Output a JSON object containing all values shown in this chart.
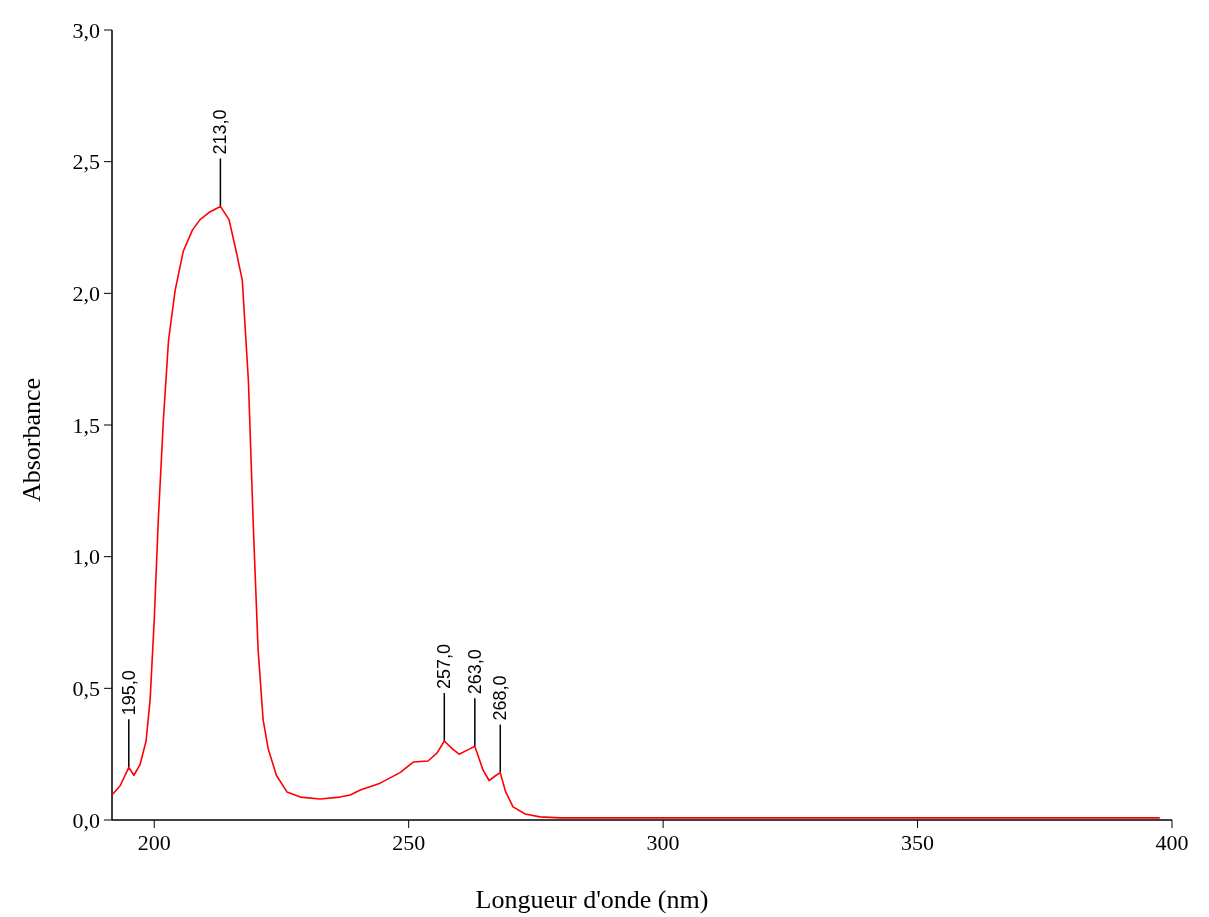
{
  "chart_data": {
    "type": "line",
    "xlabel": "Longueur d'onde (nm)",
    "ylabel": "Absorbance",
    "xlim": [
      191.7,
      400
    ],
    "xticks": [
      200,
      250,
      300,
      350,
      400
    ],
    "ylim": [
      0,
      3
    ],
    "yticks": [
      {
        "value": 0,
        "label": "0,0"
      },
      {
        "value": 0.5,
        "label": "0,5"
      },
      {
        "value": 1,
        "label": "1,0"
      },
      {
        "value": 1.5,
        "label": "1,5"
      },
      {
        "value": 2,
        "label": "2,0"
      },
      {
        "value": 2.5,
        "label": "2,5"
      },
      {
        "value": 3,
        "label": "3,0"
      }
    ],
    "grid": false,
    "series": [
      {
        "color": "#ff0000",
        "x": [
          191.7,
          193.3,
          195,
          196,
          197.2,
          198.4,
          199.2,
          200,
          200.8,
          201.8,
          202.8,
          204.1,
          205.7,
          207.5,
          209,
          211,
          213,
          214.7,
          216.1,
          217.3,
          218.5,
          219.5,
          220.4,
          221.4,
          222.4,
          224,
          226.1,
          228.7,
          232.6,
          236.5,
          238.5,
          240.5,
          244.4,
          248.3,
          250.9,
          253.8,
          255.6,
          257,
          258.6,
          259.9,
          262,
          263,
          264.6,
          265.8,
          267.2,
          268,
          269,
          270.5,
          272.9,
          275.8,
          279.8,
          397.6
        ],
        "values": [
          0.095,
          0.13,
          0.2,
          0.17,
          0.21,
          0.3,
          0.46,
          0.76,
          1.14,
          1.52,
          1.82,
          2.01,
          2.16,
          2.24,
          2.28,
          2.31,
          2.33,
          2.28,
          2.16,
          2.05,
          1.67,
          1.1,
          0.65,
          0.38,
          0.27,
          0.17,
          0.106,
          0.087,
          0.08,
          0.087,
          0.095,
          0.114,
          0.14,
          0.18,
          0.22,
          0.224,
          0.255,
          0.3,
          0.27,
          0.25,
          0.27,
          0.28,
          0.19,
          0.15,
          0.17,
          0.18,
          0.11,
          0.05,
          0.023,
          0.012,
          0.008,
          0.008
        ]
      }
    ],
    "annotations": [
      {
        "text": "195,0",
        "x": 195,
        "y": 0.2
      },
      {
        "text": "213,0",
        "x": 213,
        "y": 2.33
      },
      {
        "text": "257,0",
        "x": 257,
        "y": 0.3
      },
      {
        "text": "263,0",
        "x": 263,
        "y": 0.28
      },
      {
        "text": "268,0",
        "x": 268,
        "y": 0.18
      }
    ]
  }
}
